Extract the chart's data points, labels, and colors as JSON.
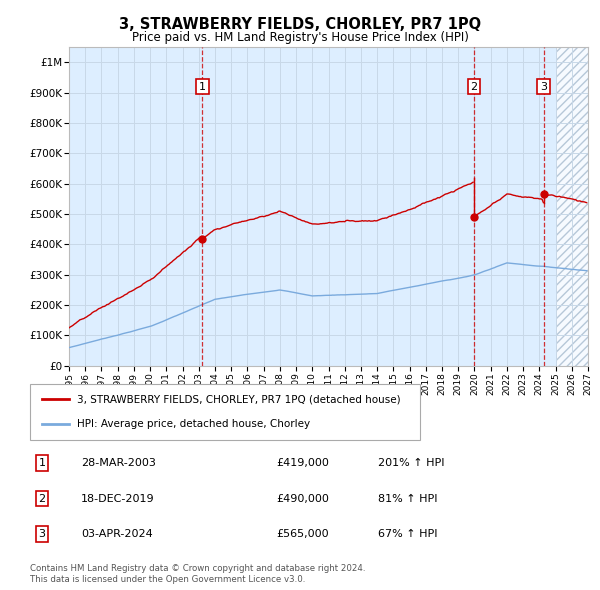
{
  "title": "3, STRAWBERRY FIELDS, CHORLEY, PR7 1PQ",
  "subtitle": "Price paid vs. HM Land Registry's House Price Index (HPI)",
  "legend_line1": "3, STRAWBERRY FIELDS, CHORLEY, PR7 1PQ (detached house)",
  "legend_line2": "HPI: Average price, detached house, Chorley",
  "footnote1": "Contains HM Land Registry data © Crown copyright and database right 2024.",
  "footnote2": "This data is licensed under the Open Government Licence v3.0.",
  "sale_markers": [
    {
      "num": 1,
      "date": "28-MAR-2003",
      "price": 419000,
      "pct": "201%",
      "x_year": 2003.23
    },
    {
      "num": 2,
      "date": "18-DEC-2019",
      "price": 490000,
      "pct": "81%",
      "x_year": 2019.97
    },
    {
      "num": 3,
      "date": "03-APR-2024",
      "price": 565000,
      "pct": "67%",
      "x_year": 2024.26
    }
  ],
  "ylim": [
    0,
    1050000
  ],
  "xlim_start": 1995,
  "xlim_end": 2027,
  "hatch_start": 2025,
  "red_color": "#cc0000",
  "blue_color": "#7aaadd",
  "hatch_color": "#aabbcc",
  "grid_color": "#c8d8e8",
  "bg_color": "#ddeeff",
  "yticks": [
    0,
    100000,
    200000,
    300000,
    400000,
    500000,
    600000,
    700000,
    800000,
    900000,
    1000000
  ],
  "ytick_labels": [
    "£0",
    "£100K",
    "£200K",
    "£300K",
    "£400K",
    "£500K",
    "£600K",
    "£700K",
    "£800K",
    "£900K",
    "£1M"
  ]
}
